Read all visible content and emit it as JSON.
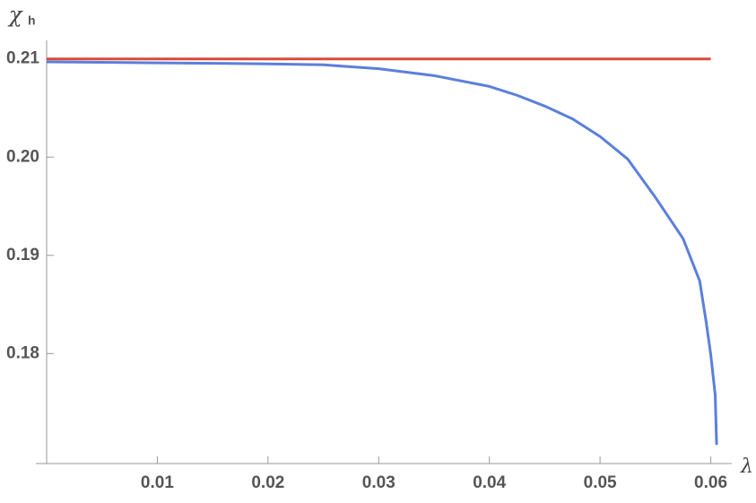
{
  "chart_data": {
    "type": "line",
    "y_label": "χ",
    "y_label_sub": "h",
    "x_label": "λ",
    "xlim": [
      0,
      0.0619
    ],
    "ylim": [
      0.1688,
      0.2118
    ],
    "xticks": [
      0.01,
      0.02,
      0.03,
      0.04,
      0.05,
      0.06
    ],
    "yticks": [
      0.18,
      0.19,
      {
        "value": 0.2,
        "label": "0.20"
      },
      0.21
    ],
    "series": [
      {
        "color": "#da4a38",
        "x": [
          0,
          0.06
        ],
        "values": [
          0.21,
          0.21
        ]
      },
      {
        "color": "#5b7fdc",
        "x": [
          0,
          0.01,
          0.02,
          0.025,
          0.03,
          0.035,
          0.04,
          0.0425,
          0.045,
          0.0475,
          0.05,
          0.0525,
          0.055,
          0.0575,
          0.059,
          0.0596,
          0.06,
          0.0604,
          0.06053
        ],
        "values": [
          0.2097,
          0.2096,
          0.2095,
          0.2094,
          0.209,
          0.2083,
          0.2072,
          0.2063,
          0.2052,
          0.2039,
          0.2021,
          0.1998,
          0.1959,
          0.1917,
          0.1874,
          0.1831,
          0.1799,
          0.1758,
          0.1707
        ]
      }
    ]
  }
}
